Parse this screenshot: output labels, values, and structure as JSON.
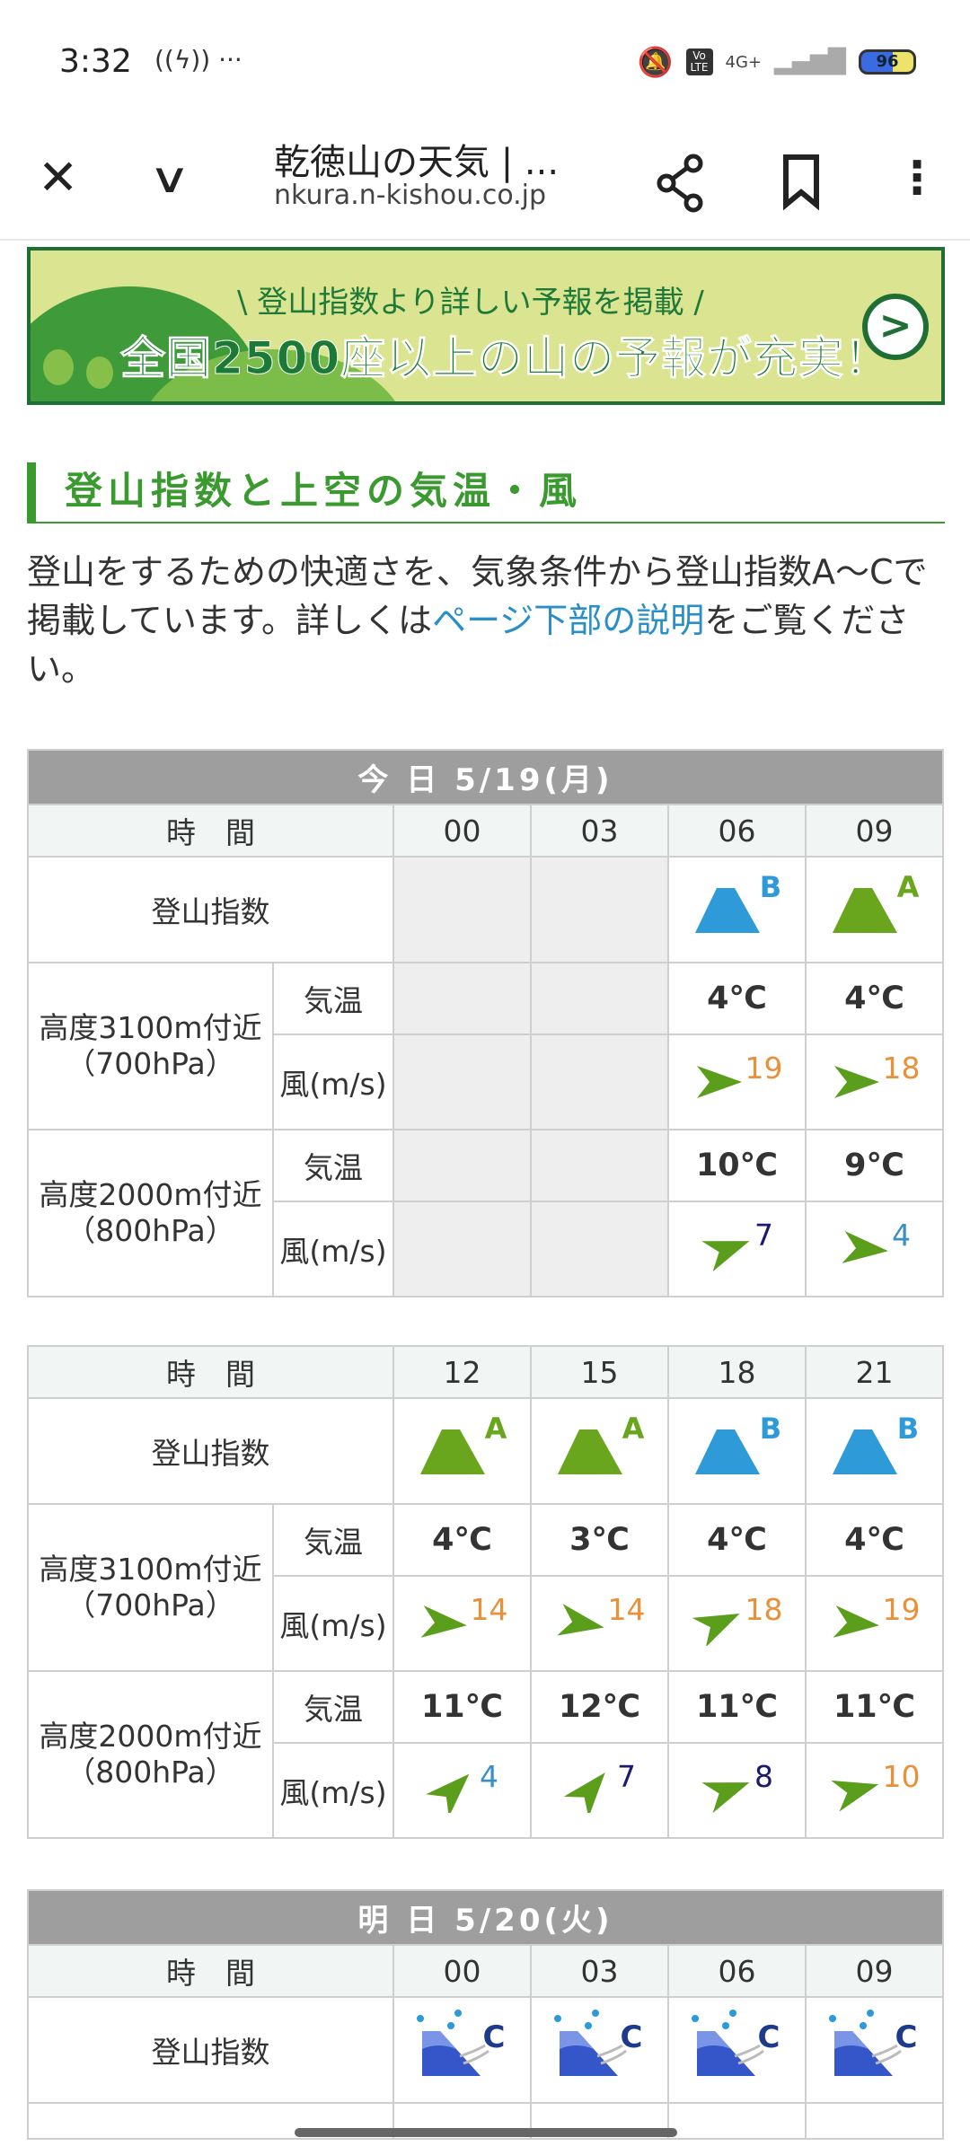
{
  "status_bar": {
    "time": "3:32",
    "extra": "((ϟ)) ···",
    "network": "4G+",
    "volte": "Vo LTE",
    "battery": "96"
  },
  "toolbar": {
    "title": "乾徳山の天気 | ...",
    "url": "nkura.n-kishou.co.jp",
    "icons": [
      "close-icon",
      "chevron-down-icon",
      "share-icon",
      "bookmark-icon",
      "more-vert-icon"
    ]
  },
  "banner": {
    "line1": "\\ 登山指数より詳しい予報を掲載 /",
    "line2": "全国2500座以上の山の予報が充実！"
  },
  "section": {
    "heading": "登山指数と上空の気温・風",
    "text_before": "登山をするための快適さを、気象条件から登山指数A〜Cで掲載しています。詳しくは",
    "link": "ページ下部の説明",
    "text_after": "をご覧ください。"
  },
  "labels": {
    "time": "時　間",
    "index": "登山指数",
    "temp": "気温",
    "wind": "風(m/s)",
    "alt1": "高度3100m付近",
    "p1": "（700hPa）",
    "alt2": "高度2000m付近",
    "p2": "（800hPa）"
  },
  "colors": {
    "A": "#6aa51e",
    "B": "#2f9ad8",
    "C": "#3556c8",
    "arrow": "#5a9e1c",
    "strong": "#e8913a",
    "mid": "#1a1a6e",
    "weak": "#3b8fc4"
  },
  "tables": [
    {
      "day": "今 日  5/19(月)",
      "times": [
        "00",
        "03",
        "06",
        "09"
      ],
      "index": [
        null,
        null,
        "B",
        "A"
      ],
      "t700": [
        null,
        null,
        "4℃",
        "4℃"
      ],
      "w700": [
        null,
        null,
        {
          "v": "19",
          "dir": 90,
          "c": "strong"
        },
        {
          "v": "18",
          "dir": 90,
          "c": "strong"
        }
      ],
      "t800": [
        null,
        null,
        "10℃",
        "9℃"
      ],
      "w800": [
        null,
        null,
        {
          "v": "7",
          "dir": 70,
          "c": "mid"
        },
        {
          "v": "4",
          "dir": 95,
          "c": "weak"
        }
      ]
    },
    {
      "day": null,
      "times": [
        "12",
        "15",
        "18",
        "21"
      ],
      "index": [
        "A",
        "A",
        "B",
        "B"
      ],
      "t700": [
        "4℃",
        "3℃",
        "4℃",
        "4℃"
      ],
      "w700": [
        {
          "v": "14",
          "dir": 95,
          "c": "strong"
        },
        {
          "v": "14",
          "dir": 100,
          "c": "strong"
        },
        {
          "v": "18",
          "dir": 65,
          "c": "strong"
        },
        {
          "v": "19",
          "dir": 95,
          "c": "strong"
        }
      ],
      "t800": [
        "11℃",
        "12℃",
        "11℃",
        "11℃"
      ],
      "w800": [
        {
          "v": "4",
          "dir": 45,
          "c": "weak"
        },
        {
          "v": "7",
          "dir": 40,
          "c": "mid"
        },
        {
          "v": "8",
          "dir": 70,
          "c": "mid"
        },
        {
          "v": "10",
          "dir": 75,
          "c": "strong"
        }
      ]
    },
    {
      "day": "明 日  5/20(火)",
      "times": [
        "00",
        "03",
        "06",
        "09"
      ],
      "index": [
        "C",
        "C",
        "C",
        "C"
      ]
    }
  ]
}
